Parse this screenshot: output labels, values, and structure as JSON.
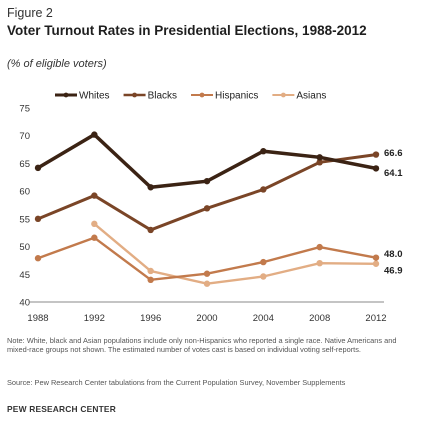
{
  "figure_label": "Figure 2",
  "title": "Voter Turnout Rates in Presidential Elections, 1988-2012",
  "subtitle": "(% of eligible voters)",
  "note": "Note: White, black and Asian populations include only non-Hispanics who reported a single race. Native Americans and mixed-race groups not shown. The estimated number of votes cast is based on individual voting self-reports.",
  "source": "Source: Pew Research Center tabulations from the Current Population Survey, November Supplements",
  "brand": "PEW RESEARCH CENTER",
  "chart_data": {
    "type": "line",
    "x": [
      1988,
      1992,
      1996,
      2000,
      2004,
      2008,
      2012
    ],
    "ylim": [
      40,
      75
    ],
    "yticks": [
      40,
      45,
      50,
      55,
      60,
      65,
      70,
      75
    ],
    "legend_position": "top",
    "grid": false,
    "series": [
      {
        "name": "Whites",
        "color": "#3b2314",
        "width": 3.5,
        "values": [
          64.2,
          70.2,
          60.7,
          61.8,
          67.2,
          66.1,
          64.1
        ],
        "end_label": "64.1"
      },
      {
        "name": "Blacks",
        "color": "#7a4527",
        "width": 3.0,
        "values": [
          55.0,
          59.2,
          53.0,
          56.9,
          60.3,
          65.2,
          66.6
        ],
        "end_label": "66.6"
      },
      {
        "name": "Hispanics",
        "color": "#c27a4c",
        "width": 2.4,
        "values": [
          47.9,
          51.6,
          44.0,
          45.1,
          47.2,
          49.9,
          48.0
        ],
        "end_label": "48.0"
      },
      {
        "name": "Asians",
        "color": "#e2ad84",
        "width": 2.4,
        "values": [
          null,
          54.1,
          45.6,
          43.3,
          44.6,
          47.0,
          46.9
        ],
        "end_label": "46.9"
      }
    ]
  }
}
